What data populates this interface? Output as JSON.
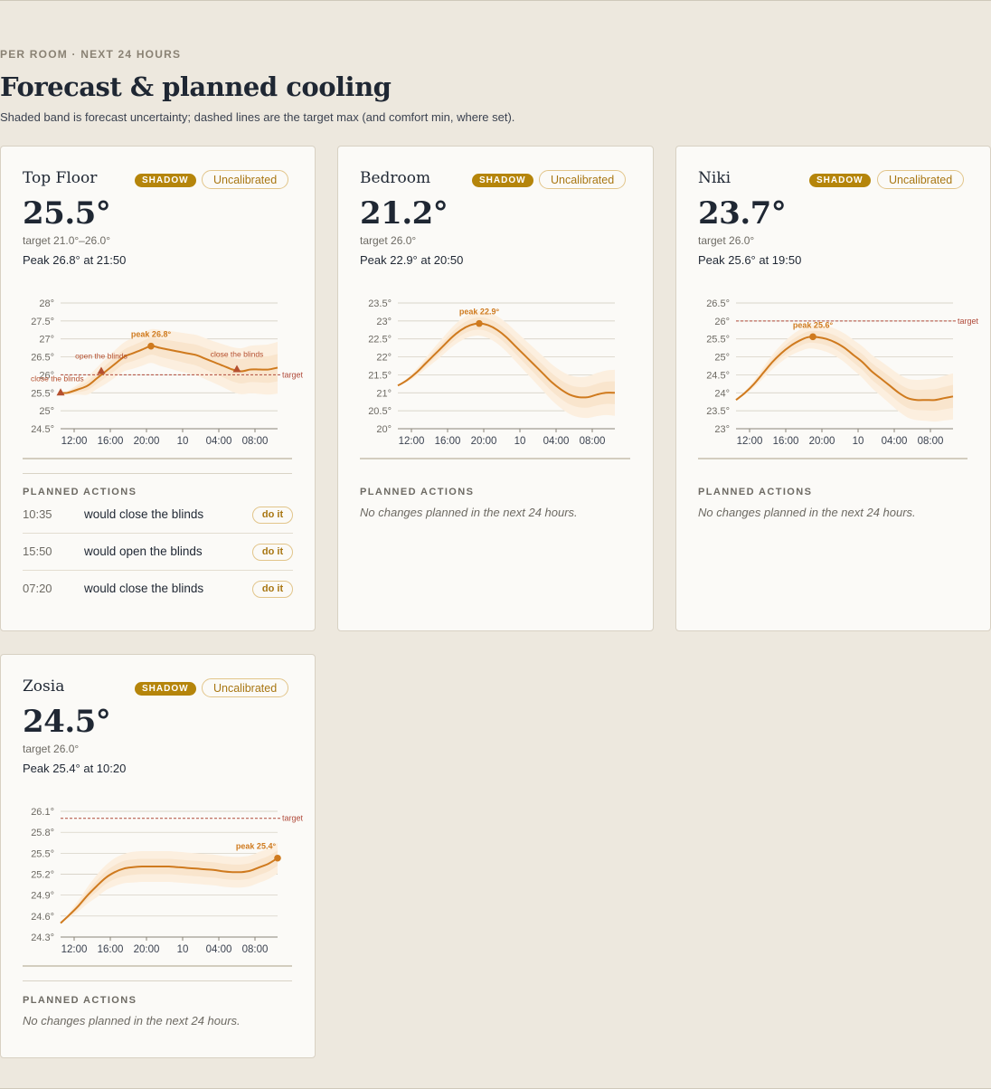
{
  "header": {
    "eyebrow": "PER ROOM · NEXT 24 HOURS",
    "title": "Forecast & planned cooling",
    "subtitle": "Shaded band is forecast uncertainty; dashed lines are the target max (and comfort min, where set)."
  },
  "labels": {
    "shadow_badge": "SHADOW",
    "uncalibrated_badge": "Uncalibrated",
    "planned_actions": "PLANNED ACTIONS",
    "no_changes": "No changes planned in the next 24 hours.",
    "do_it": "do it"
  },
  "colors": {
    "line": "#cf7a1e",
    "band_outer": "#fcefdf",
    "band_inner": "#f7ddc1",
    "target_line": "#b04a3a",
    "action_marker": "#b5502f",
    "grid": "#cfc9bb",
    "badge_shadow": "#b5850b"
  },
  "rooms": [
    {
      "name": "Top Floor",
      "current": "25.5°",
      "target": "target 21.0°–26.0°",
      "peak": "Peak 26.8° at 21:50",
      "actions": [
        {
          "time": "10:35",
          "text": "would close the blinds"
        },
        {
          "time": "15:50",
          "text": "would open the blinds"
        },
        {
          "time": "07:20",
          "text": "would close the blinds"
        }
      ],
      "chart_data": {
        "type": "line",
        "x_ticks": [
          "12:00",
          "16:00",
          "20:00",
          "10",
          "04:00",
          "08:00"
        ],
        "y_ticks": [
          "28°",
          "27.5°",
          "27°",
          "26.5°",
          "26°",
          "25.5°",
          "25°",
          "24.5°"
        ],
        "ylim": [
          24.5,
          28
        ],
        "x": [
          0,
          0.75,
          2,
          3,
          4,
          5,
          6,
          7,
          8,
          9,
          10,
          11,
          12,
          13,
          14,
          15,
          16,
          17,
          18,
          19,
          20,
          21,
          22,
          23,
          24
        ],
        "forecast": [
          25.5,
          25.5,
          25.6,
          25.7,
          25.9,
          26.1,
          26.3,
          26.5,
          26.6,
          26.7,
          26.8,
          26.75,
          26.7,
          26.65,
          26.6,
          26.55,
          26.45,
          26.35,
          26.25,
          26.15,
          26.1,
          26.15,
          26.15,
          26.15,
          26.2
        ],
        "uncertainty_outer": [
          0,
          0.05,
          0.15,
          0.25,
          0.3,
          0.35,
          0.38,
          0.4,
          0.43,
          0.45,
          0.47,
          0.5,
          0.52,
          0.54,
          0.55,
          0.56,
          0.57,
          0.58,
          0.6,
          0.62,
          0.64,
          0.66,
          0.68,
          0.7,
          0.72
        ],
        "uncertainty_inner": [
          0,
          0.03,
          0.08,
          0.12,
          0.15,
          0.17,
          0.19,
          0.2,
          0.22,
          0.23,
          0.24,
          0.25,
          0.26,
          0.27,
          0.28,
          0.29,
          0.3,
          0.31,
          0.32,
          0.33,
          0.34,
          0.35,
          0.36,
          0.37,
          0.38
        ],
        "target_max": 26.0,
        "target_label": "target",
        "peak": {
          "x": 10,
          "y": 26.8,
          "label": "peak 26.8°"
        },
        "markers": [
          {
            "x": 0,
            "y": 25.5,
            "label": "close the blinds"
          },
          {
            "x": 4.5,
            "y": 26.1,
            "label": "open the blinds"
          },
          {
            "x": 19.5,
            "y": 26.15,
            "label": "close the blinds"
          }
        ]
      }
    },
    {
      "name": "Bedroom",
      "current": "21.2°",
      "target": "target 26.0°",
      "peak": "Peak 22.9° at 20:50",
      "actions": [],
      "chart_data": {
        "type": "line",
        "x_ticks": [
          "12:00",
          "16:00",
          "20:00",
          "10",
          "04:00",
          "08:00"
        ],
        "y_ticks": [
          "23.5°",
          "23°",
          "22.5°",
          "22°",
          "21.5°",
          "21°",
          "20.5°",
          "20°"
        ],
        "ylim": [
          20,
          23.5
        ],
        "x": [
          0,
          1,
          2,
          3,
          4,
          5,
          6,
          7,
          8,
          9,
          10,
          11,
          12,
          13,
          14,
          15,
          16,
          17,
          18,
          19,
          20,
          21,
          22,
          23,
          24
        ],
        "forecast": [
          21.2,
          21.35,
          21.55,
          21.8,
          22.05,
          22.3,
          22.55,
          22.75,
          22.88,
          22.93,
          22.88,
          22.75,
          22.55,
          22.3,
          22.05,
          21.8,
          21.55,
          21.3,
          21.1,
          20.95,
          20.88,
          20.88,
          20.95,
          21.0,
          21.0
        ],
        "uncertainty_outer": [
          0,
          0.05,
          0.1,
          0.15,
          0.2,
          0.24,
          0.27,
          0.3,
          0.32,
          0.34,
          0.36,
          0.38,
          0.4,
          0.42,
          0.44,
          0.46,
          0.48,
          0.5,
          0.52,
          0.54,
          0.56,
          0.58,
          0.6,
          0.62,
          0.64
        ],
        "uncertainty_inner": [
          0,
          0.03,
          0.05,
          0.08,
          0.1,
          0.12,
          0.14,
          0.15,
          0.16,
          0.17,
          0.18,
          0.19,
          0.2,
          0.21,
          0.22,
          0.23,
          0.24,
          0.25,
          0.26,
          0.27,
          0.28,
          0.29,
          0.3,
          0.31,
          0.32
        ],
        "peak": {
          "x": 9,
          "y": 22.93,
          "label": "peak 22.9°"
        },
        "markers": []
      }
    },
    {
      "name": "Niki",
      "current": "23.7°",
      "target": "target 26.0°",
      "peak": "Peak 25.6° at 19:50",
      "actions": [],
      "chart_data": {
        "type": "line",
        "x_ticks": [
          "12:00",
          "16:00",
          "20:00",
          "10",
          "04:00",
          "08:00"
        ],
        "y_ticks": [
          "26.5°",
          "26°",
          "25.5°",
          "25°",
          "24.5°",
          "24°",
          "23.5°",
          "23°"
        ],
        "ylim": [
          23,
          26.5
        ],
        "x": [
          0,
          1,
          2,
          3,
          4,
          5,
          6,
          7,
          8,
          9,
          10,
          11,
          12,
          13,
          14,
          15,
          16,
          17,
          18,
          19,
          20,
          21,
          22,
          23,
          24
        ],
        "forecast": [
          23.8,
          24.0,
          24.25,
          24.55,
          24.85,
          25.1,
          25.3,
          25.45,
          25.55,
          25.55,
          25.5,
          25.4,
          25.25,
          25.05,
          24.85,
          24.6,
          24.4,
          24.2,
          24.0,
          23.85,
          23.8,
          23.8,
          23.8,
          23.85,
          23.9
        ],
        "uncertainty_outer": [
          0,
          0.05,
          0.1,
          0.15,
          0.2,
          0.24,
          0.27,
          0.3,
          0.32,
          0.34,
          0.36,
          0.38,
          0.4,
          0.42,
          0.44,
          0.46,
          0.48,
          0.5,
          0.52,
          0.54,
          0.56,
          0.58,
          0.6,
          0.62,
          0.64
        ],
        "uncertainty_inner": [
          0,
          0.03,
          0.05,
          0.08,
          0.1,
          0.12,
          0.14,
          0.15,
          0.16,
          0.17,
          0.18,
          0.19,
          0.2,
          0.21,
          0.22,
          0.23,
          0.24,
          0.25,
          0.26,
          0.27,
          0.28,
          0.29,
          0.3,
          0.31,
          0.32
        ],
        "target_max": 26.0,
        "target_label": "target",
        "peak": {
          "x": 8.5,
          "y": 25.56,
          "label": "peak 25.6°"
        },
        "markers": []
      }
    },
    {
      "name": "Zosia",
      "current": "24.5°",
      "target": "target 26.0°",
      "peak": "Peak 25.4° at 10:20",
      "actions": [],
      "chart_data": {
        "type": "line",
        "x_ticks": [
          "12:00",
          "16:00",
          "20:00",
          "10",
          "04:00",
          "08:00"
        ],
        "y_ticks": [
          "26.1°",
          "25.8°",
          "25.5°",
          "25.2°",
          "24.9°",
          "24.6°",
          "24.3°"
        ],
        "ylim": [
          24.3,
          26.1
        ],
        "x": [
          0,
          1,
          2,
          3,
          4,
          5,
          6,
          7,
          8,
          9,
          10,
          11,
          12,
          13,
          14,
          15,
          16,
          17,
          18,
          19,
          20,
          21,
          22,
          23,
          24
        ],
        "forecast": [
          24.5,
          24.62,
          24.75,
          24.9,
          25.03,
          25.15,
          25.23,
          25.28,
          25.3,
          25.31,
          25.31,
          25.31,
          25.31,
          25.3,
          25.29,
          25.28,
          25.27,
          25.26,
          25.24,
          25.23,
          25.23,
          25.25,
          25.3,
          25.35,
          25.43
        ],
        "uncertainty_outer": [
          0,
          0.04,
          0.08,
          0.12,
          0.16,
          0.18,
          0.2,
          0.21,
          0.22,
          0.22,
          0.22,
          0.22,
          0.22,
          0.22,
          0.22,
          0.22,
          0.22,
          0.22,
          0.22,
          0.22,
          0.22,
          0.22,
          0.22,
          0.22,
          0.22
        ],
        "uncertainty_inner": [
          0,
          0.02,
          0.04,
          0.06,
          0.08,
          0.09,
          0.1,
          0.11,
          0.11,
          0.11,
          0.11,
          0.11,
          0.11,
          0.11,
          0.11,
          0.11,
          0.11,
          0.11,
          0.11,
          0.11,
          0.11,
          0.11,
          0.11,
          0.11,
          0.11
        ],
        "target_max": 26.0,
        "target_label": "target",
        "peak": {
          "x": 24,
          "y": 25.43,
          "label": "peak 25.4°"
        },
        "markers": []
      }
    }
  ]
}
